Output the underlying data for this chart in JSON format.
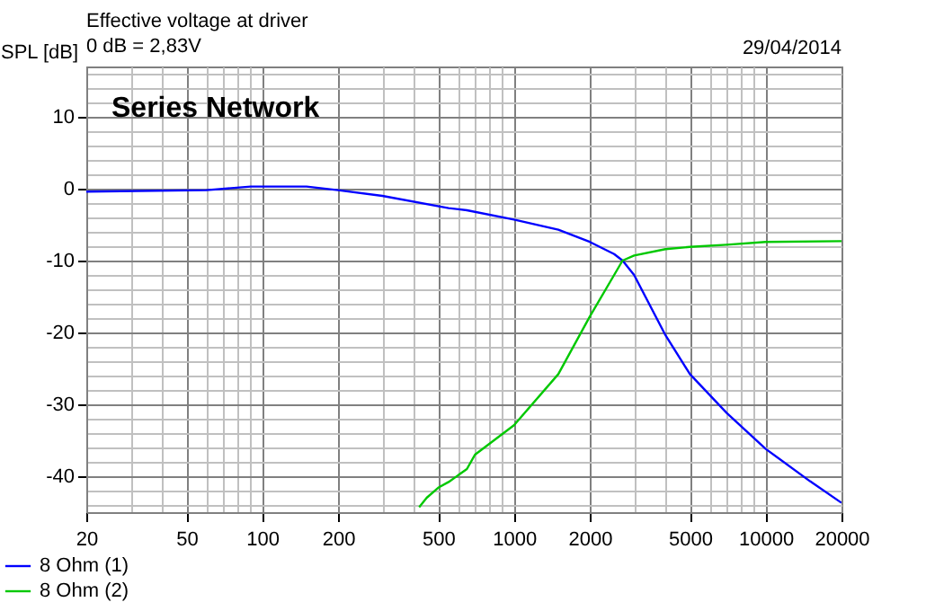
{
  "chart_data": {
    "type": "line",
    "title": "Effective voltage at driver",
    "subtitle": "0 dB = 2,83V",
    "ylabel": "SPL [dB]",
    "annotations": [
      "29/04/2014",
      "Series Network"
    ],
    "log": "x",
    "grid": true,
    "legend": "bottom left",
    "marker": "none",
    "line_style": "solid",
    "xlim": [
      20,
      20000
    ],
    "xticks": [
      20,
      50,
      100,
      200,
      500,
      1000,
      2000,
      5000,
      10000,
      20000
    ],
    "ylim": [
      -45,
      17
    ],
    "yticks": [
      -40,
      -30,
      -20,
      -10,
      0,
      10
    ],
    "series": [
      {
        "name": "8 Ohm (1)",
        "color": "#0000ff",
        "x": [
          20,
          60,
          90,
          150,
          200,
          300,
          550,
          650,
          1000,
          1500,
          2000,
          2500,
          2700,
          3000,
          4000,
          5000,
          7000,
          10000,
          15000,
          20000
        ],
        "values": [
          -0.4,
          -0.2,
          0.3,
          0.3,
          -0.2,
          -1,
          -2.7,
          -3,
          -4.3,
          -5.7,
          -7.4,
          -9.1,
          -10,
          -12,
          -20.4,
          -25.8,
          -31.2,
          -36.2,
          -40.7,
          -43.7
        ]
      },
      {
        "name": "8 Ohm (2)",
        "color": "#00c800",
        "x": [
          420,
          450,
          500,
          550,
          650,
          700,
          1000,
          1500,
          2000,
          2500,
          2700,
          3000,
          4000,
          5000,
          7000,
          10000,
          20000
        ],
        "values": [
          -44.3,
          -43,
          -41.6,
          -40.8,
          -39,
          -37,
          -32.9,
          -25.8,
          -17.8,
          -12,
          -10,
          -9.3,
          -8.4,
          -8.1,
          -7.8,
          -7.4,
          -7.3
        ]
      }
    ]
  }
}
